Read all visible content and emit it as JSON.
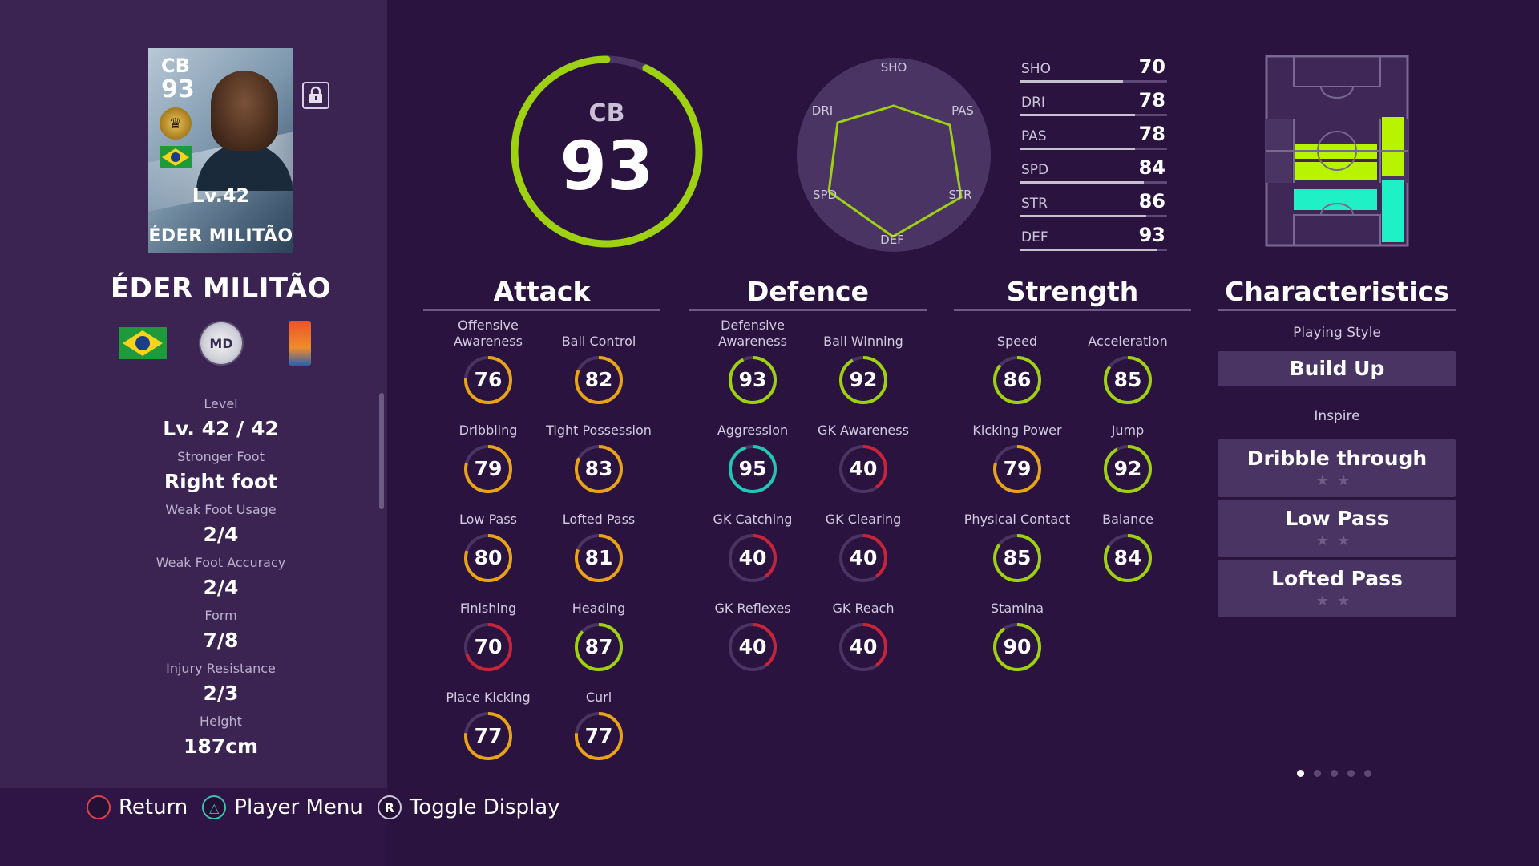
{
  "player": {
    "position": "CB",
    "overall": "93",
    "level_card": "Lv.42",
    "card_name": "ÉDER MILITÃO",
    "name": "ÉDER MILITÃO",
    "club_initials": "MD"
  },
  "info": [
    {
      "label": "Level",
      "value": "Lv. 42 / 42"
    },
    {
      "label": "Stronger Foot",
      "value": "Right foot"
    },
    {
      "label": "Weak Foot Usage",
      "value": "2/4"
    },
    {
      "label": "Weak Foot Accuracy",
      "value": "2/4"
    },
    {
      "label": "Form",
      "value": "7/8"
    },
    {
      "label": "Injury Resistance",
      "value": "2/3"
    },
    {
      "label": "Height",
      "value": "187cm"
    }
  ],
  "overall_ring": {
    "position": "CB",
    "value": "93",
    "fraction": 0.93
  },
  "radar": {
    "labels": [
      "SHO",
      "PAS",
      "STR",
      "DEF",
      "SPD",
      "DRI"
    ]
  },
  "stat_bars": [
    {
      "label": "SHO",
      "value": 70
    },
    {
      "label": "DRI",
      "value": 78
    },
    {
      "label": "PAS",
      "value": 78
    },
    {
      "label": "SPD",
      "value": 84
    },
    {
      "label": "STR",
      "value": 86
    },
    {
      "label": "DEF",
      "value": 93
    }
  ],
  "categories": {
    "attack": {
      "title": "Attack",
      "stats": [
        {
          "label": "Offensive Awareness",
          "value": 76
        },
        {
          "label": "Ball Control",
          "value": 82
        },
        {
          "label": "Dribbling",
          "value": 79
        },
        {
          "label": "Tight Possession",
          "value": 83
        },
        {
          "label": "Low Pass",
          "value": 80
        },
        {
          "label": "Lofted Pass",
          "value": 81
        },
        {
          "label": "Finishing",
          "value": 70
        },
        {
          "label": "Heading",
          "value": 87
        },
        {
          "label": "Place Kicking",
          "value": 77
        },
        {
          "label": "Curl",
          "value": 77
        }
      ]
    },
    "defence": {
      "title": "Defence",
      "stats": [
        {
          "label": "Defensive Awareness",
          "value": 93
        },
        {
          "label": "Ball Winning",
          "value": 92
        },
        {
          "label": "Aggression",
          "value": 95
        },
        {
          "label": "GK Awareness",
          "value": 40
        },
        {
          "label": "GK Catching",
          "value": 40
        },
        {
          "label": "GK Clearing",
          "value": 40
        },
        {
          "label": "GK Reflexes",
          "value": 40
        },
        {
          "label": "GK Reach",
          "value": 40
        }
      ]
    },
    "strength": {
      "title": "Strength",
      "stats": [
        {
          "label": "Speed",
          "value": 86
        },
        {
          "label": "Acceleration",
          "value": 85
        },
        {
          "label": "Kicking Power",
          "value": 79
        },
        {
          "label": "Jump",
          "value": 92
        },
        {
          "label": "Physical Contact",
          "value": 85
        },
        {
          "label": "Balance",
          "value": 84
        },
        {
          "label": "Stamina",
          "value": 90
        }
      ]
    }
  },
  "characteristics": {
    "title": "Characteristics",
    "playing_style_label": "Playing Style",
    "playing_style": "Build Up",
    "inspire_label": "Inspire",
    "skills": [
      "Dribble through",
      "Low Pass",
      "Lofted Pass"
    ],
    "stars": "★★"
  },
  "controls": [
    {
      "icon": "○",
      "label": "Return"
    },
    {
      "icon": "△",
      "label": "Player Menu"
    },
    {
      "icon": "R",
      "label": "Toggle Display"
    }
  ],
  "pager": {
    "total": 5,
    "active": 0
  },
  "colors": {
    "ring_high": "#9ed10f",
    "ring_aggression": "#20c6b6",
    "ring_mid": "#e8a317",
    "ring_low": "#c7243a",
    "ring_track": "#4a3464"
  }
}
